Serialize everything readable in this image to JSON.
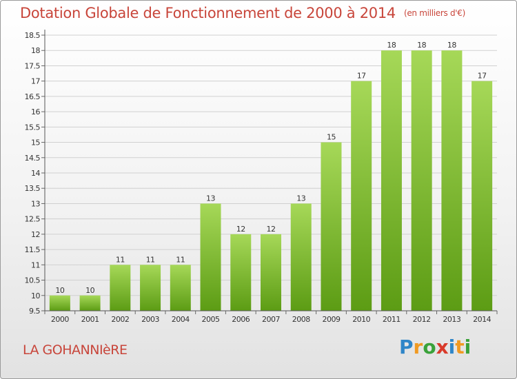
{
  "title": "Dotation Globale de Fonctionnement de 2000 à 2014",
  "unit_note": "(en milliers d'€)",
  "place": "LA GOHANNIèRE",
  "brand": {
    "letters": [
      "P",
      "r",
      "o",
      "x",
      "i",
      "t",
      "i"
    ],
    "colors": [
      "#2f86c8",
      "#f09a22",
      "#3aa23a",
      "#d93a2a",
      "#2f86c8",
      "#f09a22",
      "#3aa23a"
    ]
  },
  "colors": {
    "title": "#c8453a",
    "bar_light": "#a6d858",
    "bar_dark": "#5c9c14",
    "grid": "#d0d0d0"
  },
  "chart_data": {
    "type": "bar",
    "title": "Dotation Globale de Fonctionnement de 2000 à 2014",
    "subtitle": "(en milliers d'€)",
    "xlabel": "",
    "ylabel": "",
    "categories": [
      "2000",
      "2001",
      "2002",
      "2003",
      "2004",
      "2005",
      "2006",
      "2007",
      "2008",
      "2009",
      "2010",
      "2011",
      "2012",
      "2013",
      "2014"
    ],
    "values": [
      10,
      10,
      11,
      11,
      11,
      13,
      12,
      12,
      13,
      15,
      17,
      18,
      18,
      18,
      17
    ],
    "ylim": [
      9.5,
      18.5
    ],
    "yticks": [
      "9.5",
      "10",
      "10.5",
      "11",
      "11.5",
      "12",
      "12.5",
      "13",
      "13.5",
      "14",
      "14.5",
      "15",
      "15.5",
      "16",
      "16.5",
      "17",
      "17.5",
      "18",
      "18.5"
    ],
    "grid": true,
    "legend": "none"
  }
}
